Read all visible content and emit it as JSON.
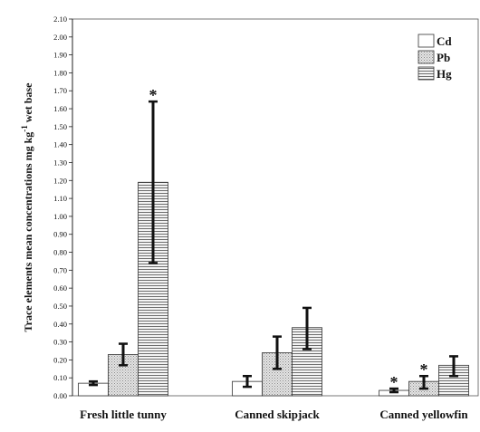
{
  "chart_data": {
    "type": "bar",
    "title": "",
    "xlabel": "",
    "ylabel": "Trace elements mean concentrations mg kg",
    "ylabel_sup": "-1",
    "ylabel_tail": " wet base",
    "ylim": [
      0,
      2.1
    ],
    "ytick_step": 0.1,
    "yticks": [
      "0.00",
      "0.10",
      "0.20",
      "0.30",
      "0.40",
      "0.50",
      "0.60",
      "0.70",
      "0.80",
      "0.90",
      "1.00",
      "1.10",
      "1.20",
      "1.30",
      "1.40",
      "1.50",
      "1.60",
      "1.70",
      "1.80",
      "1.90",
      "2.00",
      "2.10"
    ],
    "categories": [
      "Fresh little tunny",
      "Canned skipjack",
      "Canned yellowfin"
    ],
    "legend_position": "top-right",
    "grid": false,
    "series": [
      {
        "name": "Cd",
        "pattern": "white",
        "values": [
          0.07,
          0.08,
          0.03
        ],
        "err_low": [
          0.06,
          0.05,
          0.02
        ],
        "err_high": [
          0.08,
          0.11,
          0.04
        ],
        "significant": [
          false,
          false,
          true
        ]
      },
      {
        "name": "Pb",
        "pattern": "dots",
        "values": [
          0.23,
          0.24,
          0.08
        ],
        "err_low": [
          0.17,
          0.15,
          0.04
        ],
        "err_high": [
          0.29,
          0.33,
          0.11
        ],
        "significant": [
          false,
          false,
          true
        ]
      },
      {
        "name": "Hg",
        "pattern": "hlines",
        "values": [
          1.19,
          0.38,
          0.17
        ],
        "err_low": [
          0.74,
          0.26,
          0.11
        ],
        "err_high": [
          1.64,
          0.49,
          0.22
        ],
        "significant": [
          true,
          false,
          false
        ]
      }
    ],
    "significance_marker": "*"
  }
}
